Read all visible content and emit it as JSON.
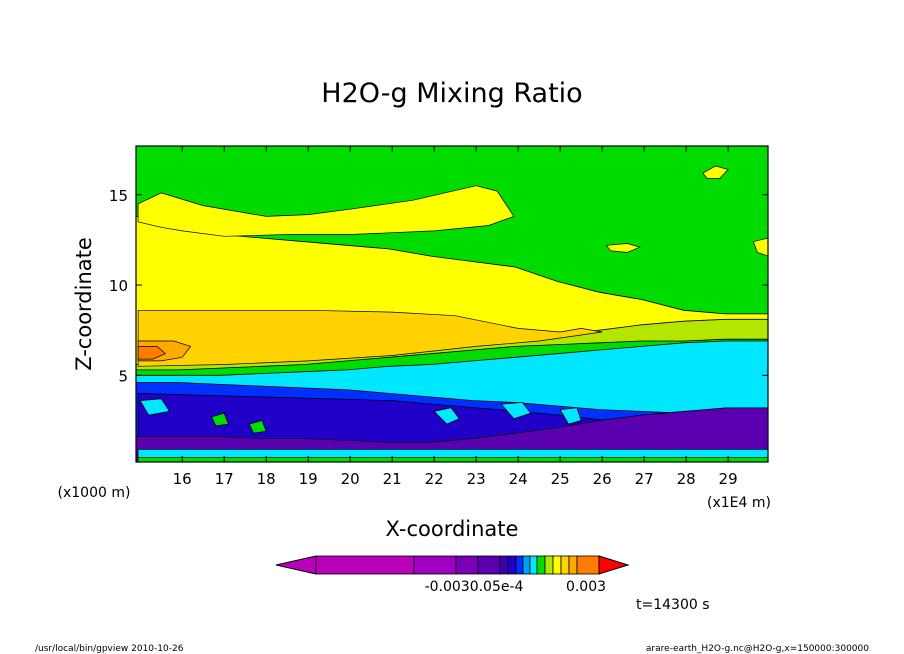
{
  "chart_data": {
    "type": "heatmap",
    "title": "H2O-g Mixing Ratio",
    "xlabel": "X-coordinate",
    "ylabel": "Z-coordinate",
    "x_unit_label": "(x1E4 m)",
    "y_unit_label": "(x1000 m)",
    "xlim": [
      14.9,
      29.95
    ],
    "ylim": [
      0.2,
      17.7
    ],
    "x_ticks": [
      16,
      17,
      18,
      19,
      20,
      21,
      22,
      23,
      24,
      25,
      26,
      27,
      28,
      29
    ],
    "y_ticks": [
      5,
      10,
      15
    ],
    "grid": false,
    "colorbar": {
      "colors": [
        "#bb00bb",
        "#a000c0",
        "#7a00b8",
        "#5a00b0",
        "#3c00b0",
        "#2000c8",
        "#0030ff",
        "#00a0ff",
        "#00e8ff",
        "#00dc00",
        "#b4e600",
        "#ffff00",
        "#ffd200",
        "#ffaa00",
        "#ff7c00",
        "#ff0000"
      ],
      "visible_labels": [
        "-0.003",
        "0.003"
      ],
      "overlapping_label_text": "-0.0030.05e-4",
      "legend_placement": "bottom"
    },
    "bands": [
      {
        "name": "blue-low",
        "color": "#0030ff",
        "top_z": [
          4.6,
          4.6,
          4.5,
          4.4,
          4.3,
          4.2,
          4.0,
          3.8,
          3.6,
          3.5,
          3.3,
          3.1,
          3.0,
          2.9,
          2.8,
          2.8
        ]
      },
      {
        "name": "cyan",
        "color": "#00e8ff",
        "top_z": [
          5.0,
          5.0,
          5.0,
          5.1,
          5.2,
          5.3,
          5.5,
          5.6,
          5.8,
          6.0,
          6.2,
          6.4,
          6.6,
          6.8,
          6.9,
          6.9
        ]
      },
      {
        "name": "green-mid",
        "color": "#00dc00",
        "top_z": [
          5.3,
          5.3,
          5.4,
          5.5,
          5.6,
          5.8,
          6.0,
          6.2,
          6.4,
          6.6,
          6.7,
          6.8,
          6.9,
          6.9,
          7.0,
          7.0
        ]
      },
      {
        "name": "yellow-green",
        "color": "#b4e600",
        "top_z": [
          5.6,
          5.6,
          5.7,
          5.8,
          6.0,
          6.2,
          6.4,
          6.6,
          6.8,
          7.0,
          7.2,
          7.5,
          7.8,
          8.0,
          8.1,
          8.1
        ]
      },
      {
        "name": "yellow",
        "color": "#ffff00",
        "top_z": [
          13.8,
          13.3,
          12.8,
          12.6,
          12.4,
          12.2,
          12.0,
          11.6,
          11.3,
          11.0,
          10.2,
          9.6,
          9.2,
          8.6,
          8.4,
          8.4
        ]
      },
      {
        "name": "green-top",
        "color": "#00dc00",
        "top_z": [
          17.7,
          17.7,
          17.7,
          17.7,
          17.7,
          17.7,
          17.7,
          17.7,
          17.7,
          17.7,
          17.7,
          17.7,
          17.7,
          17.7,
          17.7,
          17.7
        ]
      }
    ],
    "bottom_fill": {
      "name": "purple-surface",
      "color": "#5a00b0",
      "top_z": [
        1.6,
        1.6,
        1.6,
        1.5,
        1.5,
        1.4,
        1.3,
        1.3,
        1.5,
        1.8,
        2.1,
        2.5,
        2.8,
        3.0,
        3.2,
        3.2
      ]
    },
    "regions": [
      {
        "name": "upper-yellow-tongue",
        "color": "#ffff00",
        "points": [
          [
            14.95,
            14.5
          ],
          [
            15.5,
            15.1
          ],
          [
            16.5,
            14.4
          ],
          [
            18.0,
            13.8
          ],
          [
            19.0,
            13.9
          ],
          [
            20.0,
            14.2
          ],
          [
            21.5,
            14.7
          ],
          [
            23.0,
            15.5
          ],
          [
            23.5,
            15.2
          ],
          [
            23.9,
            13.8
          ],
          [
            23.3,
            13.3
          ],
          [
            22.0,
            13.0
          ],
          [
            20.0,
            12.8
          ],
          [
            18.5,
            12.8
          ],
          [
            17.0,
            12.7
          ],
          [
            16.0,
            13.0
          ],
          [
            15.5,
            13.2
          ],
          [
            14.95,
            13.5
          ]
        ]
      },
      {
        "name": "orange-layer",
        "color": "#ffd200",
        "points": [
          [
            14.95,
            8.6
          ],
          [
            17.0,
            8.6
          ],
          [
            19.0,
            8.6
          ],
          [
            21.0,
            8.5
          ],
          [
            22.5,
            8.3
          ],
          [
            24.0,
            7.6
          ],
          [
            25.0,
            7.4
          ],
          [
            25.5,
            7.6
          ],
          [
            26.0,
            7.4
          ],
          [
            24.5,
            6.9
          ],
          [
            23.0,
            6.6
          ],
          [
            21.0,
            6.1
          ],
          [
            19.0,
            5.8
          ],
          [
            17.0,
            5.6
          ],
          [
            14.95,
            5.5
          ]
        ]
      },
      {
        "name": "dark-orange-patch",
        "color": "#ffaa00",
        "points": [
          [
            14.95,
            6.9
          ],
          [
            15.8,
            6.9
          ],
          [
            16.2,
            6.6
          ],
          [
            16.0,
            6.0
          ],
          [
            15.5,
            5.8
          ],
          [
            14.95,
            5.8
          ]
        ]
      },
      {
        "name": "orange-red-patch",
        "color": "#ff7c00",
        "points": [
          [
            14.95,
            6.6
          ],
          [
            15.4,
            6.6
          ],
          [
            15.6,
            6.2
          ],
          [
            15.3,
            5.9
          ],
          [
            14.95,
            5.9
          ]
        ]
      },
      {
        "name": "yellow-spot-top",
        "color": "#ffff00",
        "points": [
          [
            28.4,
            16.2
          ],
          [
            28.7,
            16.6
          ],
          [
            29.0,
            16.4
          ],
          [
            28.8,
            15.9
          ],
          [
            28.5,
            15.9
          ]
        ]
      },
      {
        "name": "yellow-spot-right",
        "color": "#ffff00",
        "points": [
          [
            29.6,
            12.4
          ],
          [
            29.95,
            12.6
          ],
          [
            29.95,
            11.6
          ],
          [
            29.7,
            11.8
          ]
        ]
      },
      {
        "name": "yellow-spot-mid",
        "color": "#ffff00",
        "points": [
          [
            26.1,
            12.2
          ],
          [
            26.6,
            12.3
          ],
          [
            26.9,
            12.1
          ],
          [
            26.6,
            11.8
          ],
          [
            26.2,
            11.9
          ]
        ]
      },
      {
        "name": "lower-blue-band",
        "color": "#2000c8",
        "points": [
          [
            14.95,
            4.0
          ],
          [
            18.0,
            3.8
          ],
          [
            21.0,
            3.6
          ],
          [
            23.0,
            3.2
          ],
          [
            25.0,
            2.8
          ],
          [
            26.5,
            2.4
          ],
          [
            27.2,
            1.9
          ],
          [
            27.0,
            1.3
          ],
          [
            24.0,
            1.1
          ],
          [
            20.0,
            1.1
          ],
          [
            17.0,
            1.1
          ],
          [
            14.95,
            1.2
          ]
        ]
      },
      {
        "name": "cyan-wisp-1",
        "color": "#00e8ff",
        "points": [
          [
            22.0,
            3.0
          ],
          [
            22.4,
            3.2
          ],
          [
            22.6,
            2.6
          ],
          [
            22.3,
            2.3
          ]
        ]
      },
      {
        "name": "cyan-wisp-2",
        "color": "#00e8ff",
        "points": [
          [
            23.6,
            3.4
          ],
          [
            24.1,
            3.5
          ],
          [
            24.3,
            2.9
          ],
          [
            23.9,
            2.6
          ]
        ]
      },
      {
        "name": "cyan-wisp-3",
        "color": "#00e8ff",
        "points": [
          [
            25.0,
            3.1
          ],
          [
            25.4,
            3.2
          ],
          [
            25.5,
            2.5
          ],
          [
            25.2,
            2.3
          ]
        ]
      },
      {
        "name": "cyan-wisp-4",
        "color": "#00e8ff",
        "points": [
          [
            15.0,
            3.6
          ],
          [
            15.5,
            3.7
          ],
          [
            15.7,
            3.0
          ],
          [
            15.2,
            2.8
          ]
        ]
      },
      {
        "name": "green-speck-1",
        "color": "#00dc00",
        "points": [
          [
            16.7,
            2.7
          ],
          [
            17.0,
            2.9
          ],
          [
            17.1,
            2.3
          ],
          [
            16.8,
            2.2
          ]
        ]
      },
      {
        "name": "green-speck-2",
        "color": "#00dc00",
        "points": [
          [
            17.6,
            2.3
          ],
          [
            17.9,
            2.5
          ],
          [
            18.0,
            1.9
          ],
          [
            17.7,
            1.8
          ]
        ]
      },
      {
        "name": "surface-cyan",
        "color": "#00e8ff",
        "points": [
          [
            14.95,
            0.9
          ],
          [
            29.95,
            0.9
          ],
          [
            29.95,
            0.45
          ],
          [
            14.95,
            0.45
          ]
        ]
      },
      {
        "name": "surface-green",
        "color": "#00dc00",
        "points": [
          [
            14.95,
            0.45
          ],
          [
            29.95,
            0.45
          ],
          [
            29.95,
            0.2
          ],
          [
            14.95,
            0.2
          ]
        ]
      }
    ]
  },
  "footer": {
    "time_label": "t=14300 s",
    "left_text": "/usr/local/bin/gpview  2010-10-26",
    "right_text": "arare-earth_H2O-g.nc@H2O-g,x=150000:300000"
  }
}
